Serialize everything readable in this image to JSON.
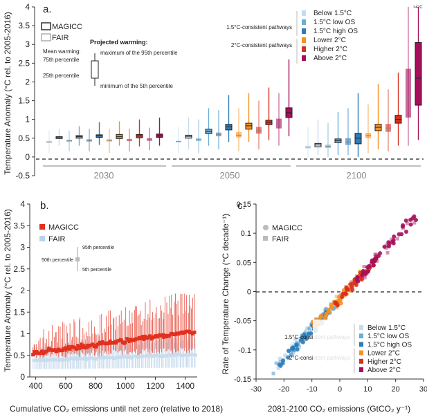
{
  "chart_data": [
    {
      "panel": "a.",
      "type": "box",
      "ylabel": "Temperature Anomaly (°C rel. to 2005-2016)",
      "yticks": [
        "-0.5",
        "0",
        "0.5",
        "1",
        "1.5",
        "2",
        "2.5",
        "3",
        "3.5",
        "4"
      ],
      "ylim": [
        -0.5,
        4
      ],
      "groups": [
        "2030",
        "2050",
        "2100"
      ],
      "models": [
        "MAGICC",
        "FAIR"
      ],
      "legend_title": "Projected warming:",
      "legend_notes": {
        "mean": "Mean warming:",
        "p75": "75th percentile",
        "p25": "25th percentile",
        "p95": "maximum of the 95th percentile",
        "p5": "minimum of the 5th percentile"
      },
      "group_labels": {
        "c15": "1.5°C-consistent pathways",
        "c2": "2°C-consistent pathways"
      },
      "categories": [
        {
          "name": "Below 1.5°C",
          "color": "#c6dbef"
        },
        {
          "name": "1.5°C low OS",
          "color": "#6aaed6"
        },
        {
          "name": "1.5°C high OS",
          "color": "#2e7cb8"
        },
        {
          "name": "Lower 2°C",
          "color": "#f7901e"
        },
        {
          "name": "Higher 2°C",
          "color": "#d7301f"
        },
        {
          "name": "Above 2°C",
          "color": "#a50f5b"
        }
      ],
      "overflow_note": ">4°C",
      "boxes": {
        "2030": [
          {
            "cat": 0,
            "model": "FAIR",
            "q25": 0.37,
            "q75": 0.43,
            "mean": 0.4,
            "p5": 0.1,
            "p95": 0.7
          },
          {
            "cat": 0,
            "model": "MAGICC",
            "q25": 0.49,
            "q75": 0.54,
            "mean": 0.52,
            "p5": 0.3,
            "p95": 0.75
          },
          {
            "cat": 1,
            "model": "FAIR",
            "q25": 0.4,
            "q75": 0.46,
            "mean": 0.43,
            "p5": 0.15,
            "p95": 0.7
          },
          {
            "cat": 1,
            "model": "MAGICC",
            "q25": 0.5,
            "q75": 0.57,
            "mean": 0.54,
            "p5": 0.3,
            "p95": 0.82
          },
          {
            "cat": 2,
            "model": "FAIR",
            "q25": 0.41,
            "q75": 0.47,
            "mean": 0.44,
            "p5": 0.15,
            "p95": 0.75
          },
          {
            "cat": 2,
            "model": "MAGICC",
            "q25": 0.52,
            "q75": 0.59,
            "mean": 0.56,
            "p5": 0.32,
            "p95": 0.93
          },
          {
            "cat": 3,
            "model": "FAIR",
            "q25": 0.41,
            "q75": 0.47,
            "mean": 0.44,
            "p5": 0.1,
            "p95": 0.75
          },
          {
            "cat": 3,
            "model": "MAGICC",
            "q25": 0.49,
            "q75": 0.6,
            "mean": 0.54,
            "p5": 0.3,
            "p95": 0.95
          },
          {
            "cat": 4,
            "model": "FAIR",
            "q25": 0.42,
            "q75": 0.48,
            "mean": 0.45,
            "p5": 0.15,
            "p95": 0.75
          },
          {
            "cat": 4,
            "model": "MAGICC",
            "q25": 0.51,
            "q75": 0.6,
            "mean": 0.56,
            "p5": 0.28,
            "p95": 1.0
          },
          {
            "cat": 5,
            "model": "FAIR",
            "q25": 0.43,
            "q75": 0.5,
            "mean": 0.46,
            "p5": 0.18,
            "p95": 0.78
          },
          {
            "cat": 5,
            "model": "MAGICC",
            "q25": 0.52,
            "q75": 0.61,
            "mean": 0.56,
            "p5": 0.3,
            "p95": 1.05
          }
        ],
        "2050": [
          {
            "cat": 0,
            "model": "FAIR",
            "q25": 0.38,
            "q75": 0.44,
            "mean": 0.41,
            "p5": 0.1,
            "p95": 0.8
          },
          {
            "cat": 0,
            "model": "MAGICC",
            "q25": 0.5,
            "q75": 0.58,
            "mean": 0.55,
            "p5": 0.2,
            "p95": 1.05
          },
          {
            "cat": 1,
            "model": "FAIR",
            "q25": 0.42,
            "q75": 0.5,
            "mean": 0.46,
            "p5": 0.1,
            "p95": 1.0
          },
          {
            "cat": 1,
            "model": "MAGICC",
            "q25": 0.62,
            "q75": 0.74,
            "mean": 0.68,
            "p5": 0.3,
            "p95": 1.3
          },
          {
            "cat": 2,
            "model": "FAIR",
            "q25": 0.55,
            "q75": 0.65,
            "mean": 0.6,
            "p5": 0.2,
            "p95": 1.25
          },
          {
            "cat": 2,
            "model": "MAGICC",
            "q25": 0.72,
            "q75": 0.87,
            "mean": 0.8,
            "p5": 0.4,
            "p95": 1.65
          },
          {
            "cat": 3,
            "model": "FAIR",
            "q25": 0.52,
            "q75": 0.66,
            "mean": 0.58,
            "p5": 0.15,
            "p95": 1.3
          },
          {
            "cat": 3,
            "model": "MAGICC",
            "q25": 0.74,
            "q75": 0.9,
            "mean": 0.83,
            "p5": 0.4,
            "p95": 1.7
          },
          {
            "cat": 4,
            "model": "FAIR",
            "q25": 0.62,
            "q75": 0.8,
            "mean": 0.7,
            "p5": 0.2,
            "p95": 1.5
          },
          {
            "cat": 4,
            "model": "MAGICC",
            "q25": 0.86,
            "q75": 0.98,
            "mean": 0.93,
            "p5": 0.45,
            "p95": 1.85
          },
          {
            "cat": 5,
            "model": "FAIR",
            "q25": 0.76,
            "q75": 1.02,
            "mean": 0.88,
            "p5": 0.3,
            "p95": 1.7
          },
          {
            "cat": 5,
            "model": "MAGICC",
            "q25": 1.05,
            "q75": 1.31,
            "mean": 1.18,
            "p5": 0.55,
            "p95": 2.6
          }
        ],
        "2100": [
          {
            "cat": 0,
            "model": "FAIR",
            "q25": 0.22,
            "q75": 0.3,
            "mean": 0.26,
            "p5": 0.0,
            "p95": 0.8
          },
          {
            "cat": 0,
            "model": "MAGICC",
            "q25": 0.27,
            "q75": 0.36,
            "mean": 0.32,
            "p5": 0.05,
            "p95": 1.0
          },
          {
            "cat": 1,
            "model": "FAIR",
            "q25": 0.24,
            "q75": 0.33,
            "mean": 0.28,
            "p5": 0.0,
            "p95": 0.9
          },
          {
            "cat": 1,
            "model": "MAGICC",
            "q25": 0.38,
            "q75": 0.48,
            "mean": 0.43,
            "p5": 0.05,
            "p95": 1.2
          },
          {
            "cat": 2,
            "model": "FAIR",
            "q25": 0.32,
            "q75": 0.5,
            "mean": 0.4,
            "p5": 0.05,
            "p95": 1.3
          },
          {
            "cat": 2,
            "model": "MAGICC",
            "q25": 0.35,
            "q75": 0.63,
            "mean": 0.5,
            "p5": 0.0,
            "p95": 1.7
          },
          {
            "cat": 3,
            "model": "FAIR",
            "q25": 0.5,
            "q75": 0.64,
            "mean": 0.57,
            "p5": 0.1,
            "p95": 1.4
          },
          {
            "cat": 3,
            "model": "MAGICC",
            "q25": 0.7,
            "q75": 0.87,
            "mean": 0.79,
            "p5": 0.2,
            "p95": 1.95
          },
          {
            "cat": 4,
            "model": "FAIR",
            "q25": 0.67,
            "q75": 0.88,
            "mean": 0.77,
            "p5": 0.15,
            "p95": 1.8
          },
          {
            "cat": 4,
            "model": "MAGICC",
            "q25": 0.9,
            "q75": 1.11,
            "mean": 1.0,
            "p5": 0.3,
            "p95": 2.25
          },
          {
            "cat": 5,
            "model": "FAIR",
            "q25": 1.05,
            "q75": 2.35,
            "mean": 1.6,
            "p5": 0.3,
            "p95": 4.0
          },
          {
            "cat": 5,
            "model": "MAGICC",
            "q25": 1.38,
            "q75": 3.05,
            "mean": 2.1,
            "p5": 0.45,
            "p95": 4.5
          }
        ]
      }
    },
    {
      "panel": "b.",
      "type": "scatter-errorbar",
      "xlabel": "Cumulative CO₂ emissions until net zero (relative to 2018)",
      "ylabel": "Temperature Anomaly (°C rel. to 2005-2016)",
      "xticks": [
        "400",
        "600",
        "800",
        "1000",
        "1200",
        "1400"
      ],
      "yticks": [
        "0",
        "0.5",
        "1",
        "1.5",
        "2",
        "2.5",
        "3",
        "3.5",
        "4"
      ],
      "xlim": [
        360,
        1480
      ],
      "ylim": [
        0,
        4
      ],
      "series": [
        {
          "name": "MAGICC",
          "color": "#e0301e"
        },
        {
          "name": "FAIR",
          "color": "#b9d3ea"
        }
      ],
      "legend_notes": {
        "p95": "95th percentile",
        "p50": "50th percentile",
        "p5": "5th percentile"
      },
      "magicc_trend": {
        "x0": 380,
        "y0": 0.55,
        "x1": 1460,
        "y1": 1.05,
        "p95_x0": 1.1,
        "p95_x1": 2.05,
        "p5_x0": 0.42,
        "p5_x1": 0.55,
        "n": 130
      },
      "fair_trend": {
        "y0": 0.38,
        "y1": 0.52,
        "p95_x0": 0.62,
        "p95_x1": 0.8,
        "p5_x0": 0.18,
        "p5_x1": 0.22
      }
    },
    {
      "panel": "c.",
      "type": "scatter",
      "xlabel": "2081-2100 CO₂ emissions (GtCO₂ y⁻¹)",
      "ylabel": "Rate of Temperature Change (°C decade⁻¹)",
      "xticks": [
        "-30",
        "-20",
        "-10",
        "0",
        "10",
        "20",
        "30"
      ],
      "yticks": [
        "-0.15",
        "-0.1",
        "-0.05",
        "0",
        "0.05",
        "0.1",
        "0.15"
      ],
      "xlim": [
        -30,
        30
      ],
      "ylim": [
        -0.15,
        0.15
      ],
      "models": [
        {
          "name": "MAGICC",
          "marker": "circle"
        },
        {
          "name": "FAIR",
          "marker": "square"
        }
      ],
      "group_labels": {
        "c15": "1.5°C-consistent pathways",
        "c2": "2°C-consistent pathways"
      },
      "categories": [
        {
          "name": "Below 1.5°C",
          "color": "#c6dbef",
          "xr": [
            -22,
            -6
          ]
        },
        {
          "name": "1.5°C low OS",
          "color": "#6aaed6",
          "xr": [
            -18,
            -2
          ]
        },
        {
          "name": "1.5°C high OS",
          "color": "#2e7cb8",
          "xr": [
            -22,
            -4
          ]
        },
        {
          "name": "Lower 2°C",
          "color": "#f7901e",
          "xr": [
            -10,
            8
          ]
        },
        {
          "name": "Higher 2°C",
          "color": "#d7301f",
          "xr": [
            -2,
            14
          ]
        },
        {
          "name": "Above 2°C",
          "color": "#a50f5b",
          "xr": [
            6,
            28
          ]
        }
      ],
      "relation": {
        "slope": 0.0052,
        "intercept": -0.012,
        "noise": 0.012
      }
    }
  ]
}
